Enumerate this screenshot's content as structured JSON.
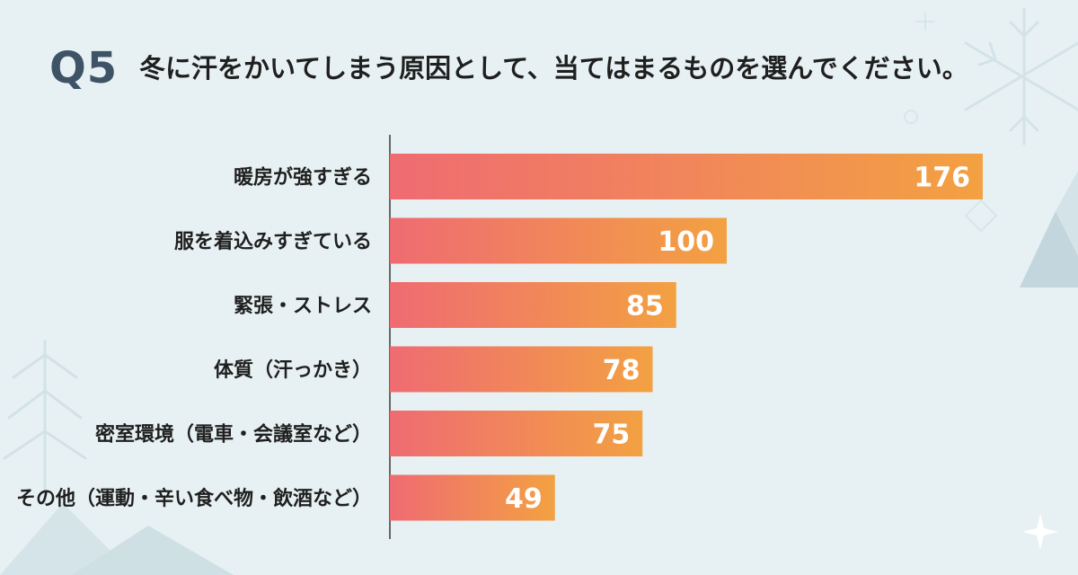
{
  "header": {
    "question_number": "Q5",
    "question_text": "冬に汗をかいてしまう原因として、当てはまるものを選んでください。"
  },
  "colors": {
    "background": "#e7f1f3",
    "bar_start": "#ef6b72",
    "bar_end": "#f3a142",
    "axis": "#3b3b3b",
    "decoration": "#c9dde3"
  },
  "chart_data": {
    "type": "bar",
    "orientation": "horizontal",
    "title": "冬に汗をかいてしまう原因として、当てはまるものを選んでください。",
    "categories": [
      "暖房が強すぎる",
      "服を着込みすぎている",
      "緊張・ストレス",
      "体質（汗っかき）",
      "密室環境（電車・会議室など）",
      "その他（運動・辛い食べ物・飲酒など）"
    ],
    "values": [
      176,
      100,
      85,
      78,
      75,
      49
    ],
    "value_labels": [
      "176",
      "100",
      "85",
      "78",
      "75",
      "49"
    ],
    "xlim": [
      0,
      180
    ],
    "grid": false,
    "legend": "none"
  }
}
